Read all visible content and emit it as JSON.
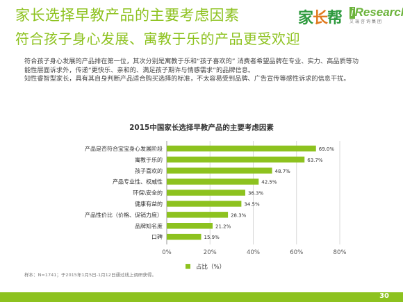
{
  "header": {
    "title": "家长选择早教产品的主要考虑因素",
    "subtitle": "符合孩子身心发展、寓教于乐的产品更受欢迎"
  },
  "logos": {
    "jiazhangbang": {
      "part1": "家",
      "part2": "长",
      "part3": "帮"
    },
    "iresearch": {
      "name": "Research",
      "prefix": "i",
      "sub": "艾瑞咨询集团"
    }
  },
  "body_text": {
    "line1": "符合孩子身心发展的产品排在第一位，其次分别是寓教于乐和“孩子喜欢的” 消费者希望品牌在专业、实力、高品质等功",
    "line2": "能性层面诉求外，传递“更快乐、亲和的、满足孩子期许与情感需求”的品牌信息。",
    "line3": "知性睿智型家长，具有其自身判断产品适合购买选择的标准，不太容易受到品牌、广告宣传等感性诉求的信息干扰。"
  },
  "chart_data": {
    "type": "bar",
    "orientation": "horizontal",
    "title": "2015中国家长选择早教产品的主要考虑因素",
    "categories": [
      "产品是否符合宝宝身心发展阶段",
      "寓教于乐的",
      "孩子喜欢的",
      "产品专业性、权威性",
      "环保\\安全的",
      "健康有益的",
      "产品性价比（价格、促销力度）",
      "品牌知名度",
      "口碑"
    ],
    "values": [
      69.0,
      63.7,
      48.7,
      42.5,
      36.3,
      34.5,
      28.3,
      21.2,
      15.9
    ],
    "value_labels": [
      "69.0%",
      "63.7%",
      "48.7%",
      "42.5%",
      "36.3%",
      "34.5%",
      "28.3%",
      "21.2%",
      "15.9%"
    ],
    "xlim": [
      0,
      80
    ],
    "xticks": [
      "0%",
      "20%",
      "40%",
      "60%",
      "80%"
    ],
    "xtick_values": [
      0,
      20,
      40,
      60,
      80
    ],
    "legend": [
      "占比（%）"
    ],
    "legend_position": "bottom",
    "grid": true,
    "color": "#8dc21f"
  },
  "footer": {
    "source": "样本：N=1741；于2015年1月5日-1月12日通过线上调研获得。",
    "page": "30"
  }
}
